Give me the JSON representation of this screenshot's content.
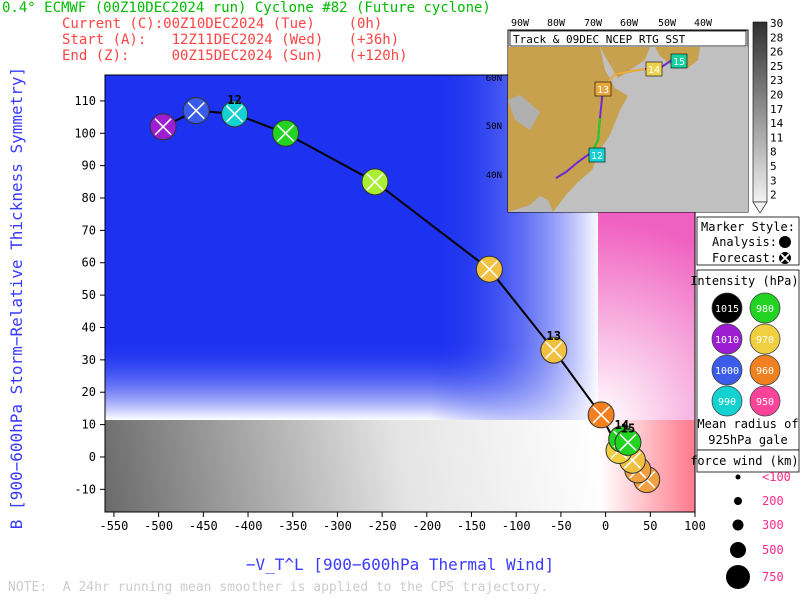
{
  "header": {
    "title": "0.4° ECMWF (00Z10DEC2024 run) Cyclone #82 (Future cyclone)",
    "current": "Current (C):00Z10DEC2024 (Tue)    (0h)",
    "start": "Start (A):   12Z11DEC2024 (Wed)   (+36h)",
    "end": "End (Z):     00Z15DEC2024 (Sun)   (+120h)"
  },
  "note": "NOTE:  A 24hr running mean smoother is applied to the CPS trajectory.",
  "chart_data": {
    "type": "scatter",
    "title": "",
    "xlabel": "−V_T^L [900−600hPa Thermal Wind]",
    "ylabel": "B [900−600hPa Storm−Relative Thickness Symmetry]",
    "xlim": [
      -560,
      100
    ],
    "ylim": [
      -17,
      118
    ],
    "xticks": [
      -550,
      -500,
      -450,
      -400,
      -350,
      -300,
      -250,
      -200,
      -150,
      -100,
      -50,
      0,
      50,
      100
    ],
    "yticks": [
      -10,
      0,
      10,
      20,
      30,
      40,
      50,
      60,
      70,
      80,
      90,
      100,
      110
    ],
    "grid": false,
    "series": [
      {
        "name": "track",
        "points": [
          {
            "x": -495,
            "y": 102,
            "color": "#9d1ed2",
            "label": ""
          },
          {
            "x": -458,
            "y": 107,
            "color": "#3a5ce8",
            "label": ""
          },
          {
            "x": -415,
            "y": 106,
            "color": "#14d2d2",
            "label": "12"
          },
          {
            "x": -358,
            "y": 100,
            "color": "#22d322",
            "label": ""
          },
          {
            "x": -258,
            "y": 85,
            "color": "#aaee33",
            "label": ""
          },
          {
            "x": -130,
            "y": 58,
            "color": "#f0c040",
            "label": ""
          },
          {
            "x": -58,
            "y": 33,
            "color": "#f0c040",
            "label": "13"
          },
          {
            "x": -5,
            "y": 13,
            "color": "#f08020",
            "label": ""
          },
          {
            "x": 25,
            "y": 4.5,
            "color": "#22d322",
            "label": "15"
          },
          {
            "x": 18,
            "y": 5.5,
            "color": "#22d322",
            "label": "14"
          },
          {
            "x": 15,
            "y": 2,
            "color": "#f0d040",
            "label": ""
          },
          {
            "x": 30,
            "y": -1,
            "color": "#f0c040",
            "label": ""
          },
          {
            "x": 36,
            "y": -4,
            "color": "#f0a040",
            "label": ""
          },
          {
            "x": 46,
            "y": -7,
            "color": "#f0a040",
            "label": ""
          }
        ]
      }
    ]
  },
  "inset": {
    "title": "Track & 09DEC NCEP RTG SST",
    "lon_labels": [
      "90W",
      "80W",
      "70W",
      "60W",
      "50W",
      "40W"
    ],
    "lat_labels": [
      "60N",
      "50N",
      "40N"
    ],
    "sst_scale": [
      "30",
      "28",
      "26",
      "25",
      "23",
      "20",
      "17",
      "14",
      "11",
      "8",
      "5",
      "3",
      "2"
    ],
    "track_labels": [
      "12",
      "13",
      "14",
      "15"
    ]
  },
  "legend": {
    "marker_style_title": "Marker Style:",
    "analysis_label": "Analysis:",
    "forecast_label": "Forecast:",
    "intensity_title": "Intensity (hPa):",
    "intensity": [
      {
        "value": "1015",
        "color": "#000000"
      },
      {
        "value": "980",
        "color": "#22d322"
      },
      {
        "value": "1010",
        "color": "#9d1ed2"
      },
      {
        "value": "970",
        "color": "#f0d040"
      },
      {
        "value": "1000",
        "color": "#3a5ce8"
      },
      {
        "value": "960",
        "color": "#f08020"
      },
      {
        "value": "990",
        "color": "#14d2d2"
      },
      {
        "value": "950",
        "color": "#ff4499"
      }
    ],
    "radius_title_1": "Mean radius of",
    "radius_title_2": "925hPa gale",
    "radius_title_3": "force wind (km):",
    "radius": [
      "<100",
      "200",
      "300",
      "500",
      "750"
    ]
  }
}
